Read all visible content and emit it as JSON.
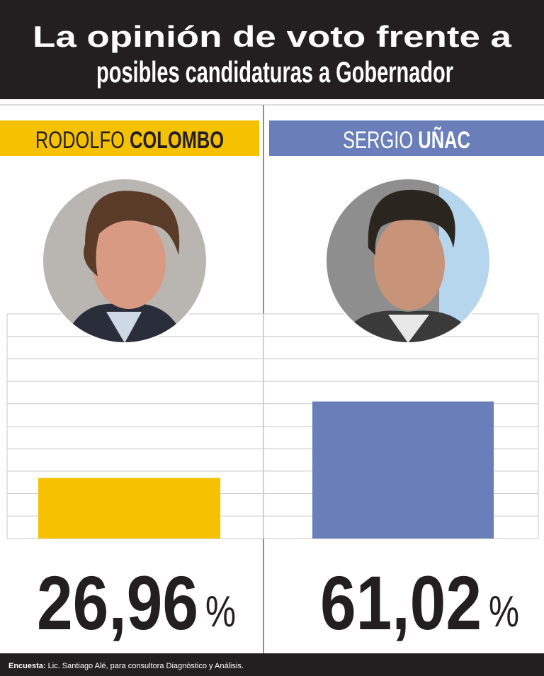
{
  "chart_data": {
    "type": "bar",
    "title": "La opinión de voto frente a posibles candidaturas a Gobernador",
    "categories": [
      "RODOLFO COLOMBO",
      "SERGIO UÑAC"
    ],
    "values": [
      26.96,
      61.02
    ],
    "value_labels": [
      "26,96",
      "61,02"
    ],
    "unit": "%",
    "colors": [
      "#f5c100",
      "#6a7fb9"
    ],
    "ylim": [
      0,
      100
    ],
    "yticks": [
      0,
      10,
      20,
      30,
      40,
      50,
      60,
      70,
      80,
      90,
      100
    ],
    "grid": true,
    "footer_label": "Encuesta:",
    "footer_text": "Lic. Santiago Alé, para consultora Diagnóstico y Análisis."
  }
}
